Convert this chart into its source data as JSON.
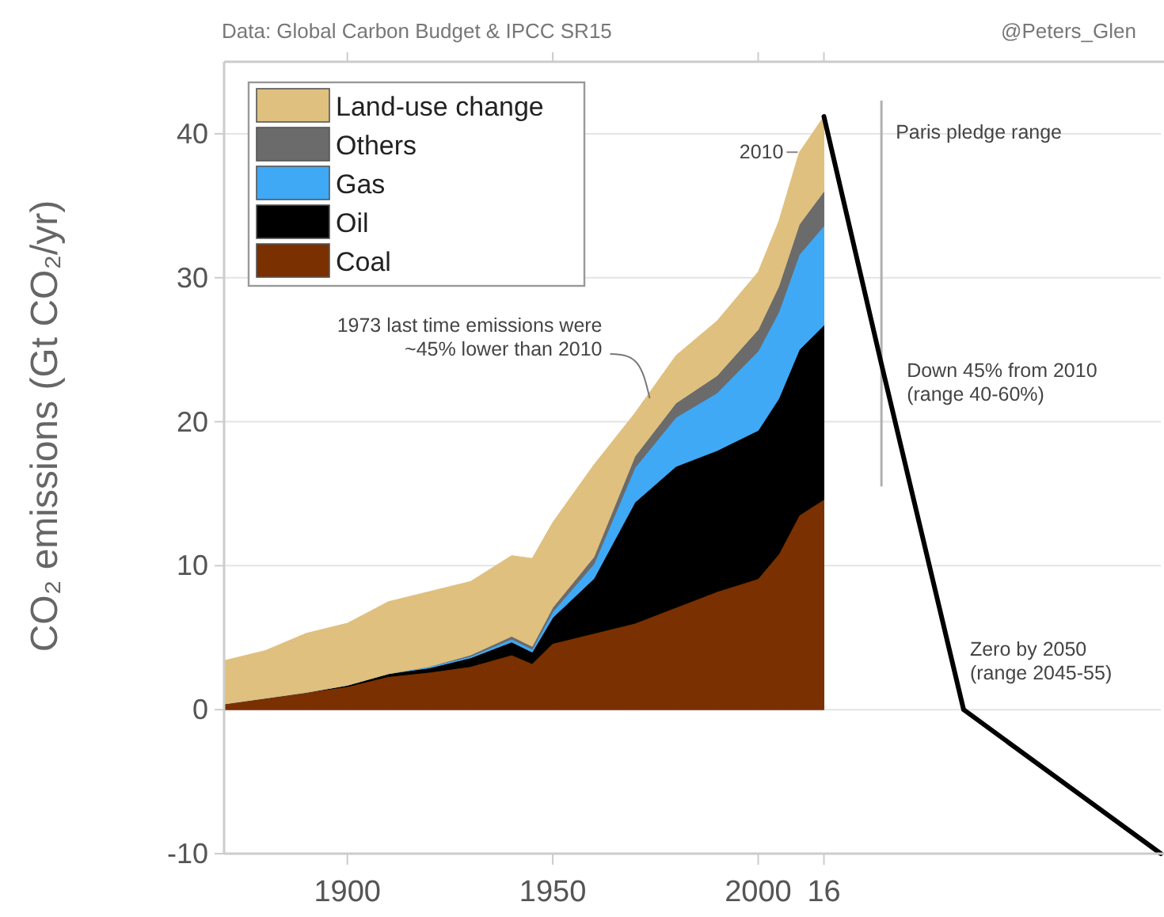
{
  "chart_data": {
    "type": "area",
    "stacked": true,
    "ylabel": "CO₂ emissions (Gt CO₂/yr)",
    "x": [
      1870,
      1880,
      1890,
      1900,
      1910,
      1920,
      1930,
      1940,
      1945,
      1950,
      1960,
      1970,
      1980,
      1990,
      2000,
      2005,
      2010,
      2016
    ],
    "xlim": [
      1870,
      2098
    ],
    "xticks": [
      1900,
      1950,
      2000,
      {
        "value": 2016,
        "label": "16"
      }
    ],
    "ylim": [
      -10,
      45
    ],
    "yticks": [
      -10,
      0,
      10,
      20,
      30,
      40
    ],
    "grid": "y",
    "legend": "top left",
    "series": [
      {
        "name": "Coal",
        "color": "#7a3000",
        "values": [
          0.4,
          0.8,
          1.2,
          1.6,
          2.3,
          2.6,
          3.0,
          3.8,
          3.2,
          4.6,
          5.3,
          6.0,
          7.1,
          8.2,
          9.1,
          10.8,
          13.5,
          14.6
        ]
      },
      {
        "name": "Oil",
        "color": "#000000",
        "values": [
          0,
          0,
          0,
          0.1,
          0.2,
          0.3,
          0.6,
          0.9,
          0.8,
          1.8,
          3.8,
          8.4,
          9.8,
          9.8,
          10.3,
          10.8,
          11.5,
          12.1
        ]
      },
      {
        "name": "Gas",
        "color": "#3fa9f5",
        "values": [
          0,
          0,
          0,
          0,
          0,
          0.1,
          0.1,
          0.2,
          0.2,
          0.4,
          1.0,
          2.4,
          3.4,
          4.0,
          5.5,
          6.0,
          6.6,
          6.9
        ]
      },
      {
        "name": "Others",
        "color": "#6b6b6b",
        "values": [
          0,
          0,
          0,
          0,
          0,
          0,
          0.1,
          0.2,
          0.2,
          0.3,
          0.5,
          0.8,
          1.0,
          1.2,
          1.5,
          1.8,
          2.1,
          2.4
        ]
      },
      {
        "name": "Land-use change",
        "color": "#dfc07f",
        "values": [
          3.0,
          3.3,
          4.1,
          4.3,
          5.0,
          5.2,
          5.1,
          5.6,
          6.1,
          5.9,
          6.4,
          3.0,
          3.3,
          3.8,
          4.0,
          4.5,
          5.0,
          5.2
        ]
      },
      {
        "type": "line",
        "color": "#000000",
        "x": [
          2016,
          2030,
          2050,
          2098
        ],
        "values": [
          41.2,
          24,
          0,
          -10
        ],
        "errors": [
          null,
          [
            15.5,
            42.3
          ],
          null,
          null
        ]
      }
    ],
    "annotations": [
      {
        "text": "2010",
        "x": 2010,
        "y": 38.5
      },
      {
        "text": "1973 last time emissions were\n~45% lower than 2010",
        "x": 1973.6,
        "y": 21.4
      },
      {
        "text": "Paris pledge range",
        "x": 2030,
        "y": 42.3
      },
      {
        "text": "Down 45% from 2010\n(range 40-60%)",
        "x": 2030,
        "y": 24
      },
      {
        "text": "Zero by 2050\n(range 2045-55)",
        "x": 2050,
        "y": 0
      },
      "Data: Global Carbon Budget & IPCC SR15",
      "@Peters_Glen"
    ]
  }
}
